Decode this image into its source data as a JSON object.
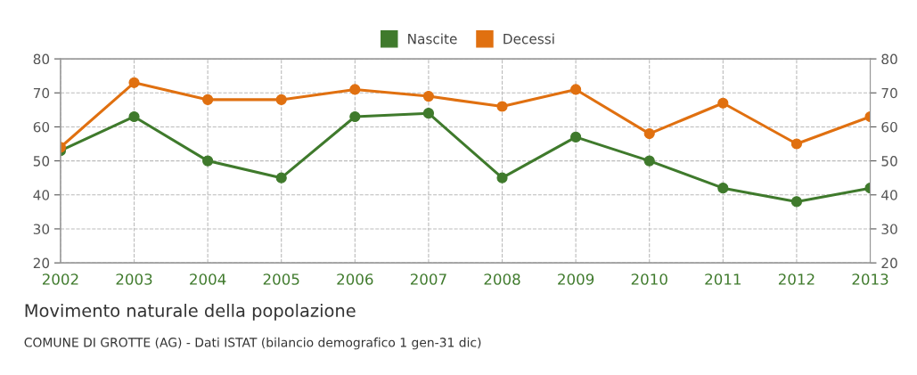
{
  "chart_data": {
    "type": "line",
    "title": "Movimento naturale della popolazione",
    "annotations": [
      "COMUNE DI GROTTE (AG) - Dati ISTAT (bilancio demografico 1 gen-31 dic)"
    ],
    "x": [
      2002,
      2003,
      2004,
      2005,
      2006,
      2007,
      2008,
      2009,
      2010,
      2011,
      2012,
      2013
    ],
    "xlim": [
      2002,
      2013
    ],
    "xticks": [
      2002,
      2003,
      2004,
      2005,
      2006,
      2007,
      2008,
      2009,
      2010,
      2011,
      2012,
      2013
    ],
    "ylim": [
      20,
      80
    ],
    "yticks": [
      20,
      30,
      40,
      50,
      60,
      70,
      80
    ],
    "y2lim": [
      20,
      80
    ],
    "y2ticks": [
      20,
      30,
      40,
      50,
      60,
      70,
      80
    ],
    "series": [
      {
        "name": "Nascite",
        "color": "#3f7a2c",
        "values": [
          53,
          63,
          50,
          45,
          63,
          64,
          45,
          57,
          50,
          42,
          38,
          42
        ]
      },
      {
        "name": "Decessi",
        "color": "#e07010",
        "values": [
          54,
          73,
          68,
          68,
          71,
          69,
          66,
          71,
          58,
          67,
          55,
          63
        ]
      }
    ],
    "marker": "circle",
    "line_style": "solid",
    "grid": true,
    "legend": "top"
  }
}
